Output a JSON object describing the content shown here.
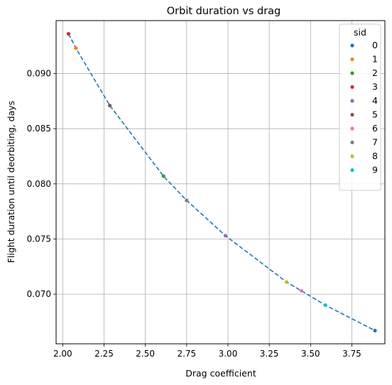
{
  "chart_data": {
    "type": "scatter",
    "title": "Orbit duration vs drag",
    "xlabel": "Drag coefficient",
    "ylabel": "Flight duration until deorbiting, days",
    "xlim": [
      1.96,
      3.95
    ],
    "ylim": [
      0.0655,
      0.0948
    ],
    "xticks": [
      2.0,
      2.25,
      2.5,
      2.75,
      3.0,
      3.25,
      3.5,
      3.75
    ],
    "xtick_labels": [
      "2.00",
      "2.25",
      "2.50",
      "2.75",
      "3.00",
      "3.25",
      "3.50",
      "3.75"
    ],
    "yticks": [
      0.07,
      0.075,
      0.08,
      0.085,
      0.09
    ],
    "ytick_labels": [
      "0.070",
      "0.075",
      "0.080",
      "0.085",
      "0.090"
    ],
    "grid": true,
    "legend": {
      "title": "sid",
      "placement": "top-right",
      "entries": [
        "0",
        "1",
        "2",
        "3",
        "4",
        "5",
        "6",
        "7",
        "8",
        "9"
      ]
    },
    "series": [
      {
        "name": "0",
        "color": "#1f77b4",
        "points": [
          [
            3.89,
            0.0667
          ]
        ]
      },
      {
        "name": "1",
        "color": "#ff7f0e",
        "points": [
          [
            2.08,
            0.0923
          ]
        ]
      },
      {
        "name": "2",
        "color": "#2ca02c",
        "points": [
          [
            2.61,
            0.0807
          ]
        ]
      },
      {
        "name": "3",
        "color": "#d62728",
        "points": [
          [
            2.035,
            0.0936
          ]
        ]
      },
      {
        "name": "4",
        "color": "#9467bd",
        "points": [
          [
            2.985,
            0.0753
          ]
        ]
      },
      {
        "name": "5",
        "color": "#8c564b",
        "points": [
          [
            2.285,
            0.0871
          ]
        ]
      },
      {
        "name": "6",
        "color": "#e377c2",
        "points": [
          [
            3.445,
            0.0703
          ]
        ]
      },
      {
        "name": "7",
        "color": "#7f7f7f",
        "points": [
          [
            2.75,
            0.0785
          ]
        ]
      },
      {
        "name": "8",
        "color": "#bcbd22",
        "points": [
          [
            3.355,
            0.0711
          ]
        ]
      },
      {
        "name": "9",
        "color": "#17becf",
        "points": [
          [
            3.59,
            0.069
          ]
        ]
      }
    ],
    "trend_line": {
      "color": "#1f77b4",
      "style": "dashed",
      "points": [
        [
          2.035,
          0.0936
        ],
        [
          2.08,
          0.0923
        ],
        [
          2.285,
          0.0871
        ],
        [
          2.61,
          0.0807
        ],
        [
          2.75,
          0.0785
        ],
        [
          2.985,
          0.0753
        ],
        [
          3.355,
          0.0711
        ],
        [
          3.445,
          0.0703
        ],
        [
          3.59,
          0.069
        ],
        [
          3.89,
          0.0667
        ]
      ]
    }
  }
}
